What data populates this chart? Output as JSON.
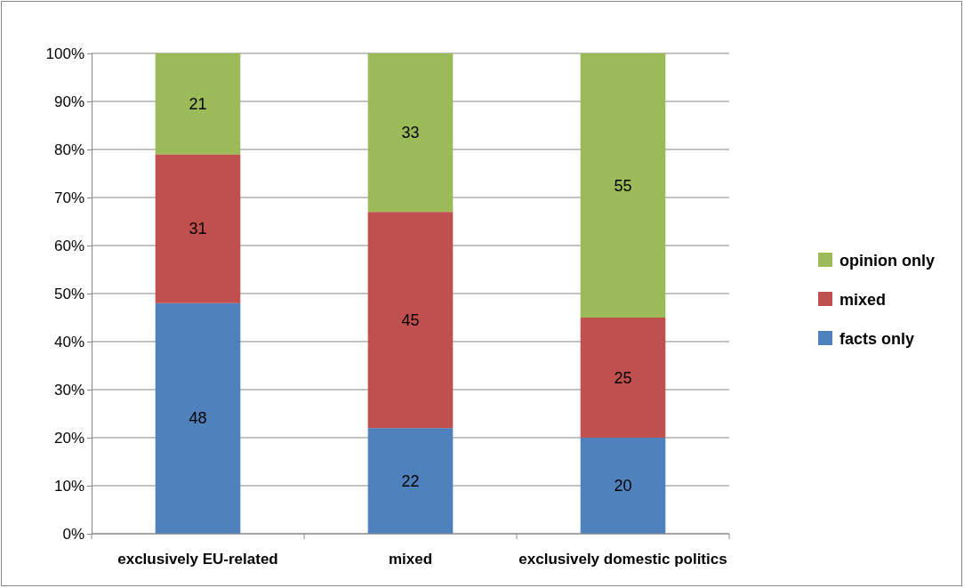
{
  "chart_data": {
    "type": "bar",
    "stacked": true,
    "categories": [
      "exclusively EU-related",
      "mixed",
      "exclusively domestic politics"
    ],
    "series": [
      {
        "name": "facts only",
        "color": "#4f81bd",
        "values": [
          48,
          22,
          20
        ]
      },
      {
        "name": "mixed",
        "color": "#c0504d",
        "values": [
          31,
          45,
          25
        ]
      },
      {
        "name": "opinion only",
        "color": "#9bbb59",
        "values": [
          21,
          33,
          55
        ]
      }
    ],
    "ylim": [
      0,
      100
    ],
    "yticks": [
      {
        "value": 0,
        "label": "0%"
      },
      {
        "value": 10,
        "label": "10%"
      },
      {
        "value": 20,
        "label": "20%"
      },
      {
        "value": 30,
        "label": "30%"
      },
      {
        "value": 40,
        "label": "40%"
      },
      {
        "value": 50,
        "label": "50%"
      },
      {
        "value": 60,
        "label": "60%"
      },
      {
        "value": 70,
        "label": "70%"
      },
      {
        "value": 80,
        "label": "80%"
      },
      {
        "value": 90,
        "label": "90%"
      },
      {
        "value": 100,
        "label": "100%"
      }
    ],
    "grid": "y",
    "legend": "right",
    "data_labels": true
  }
}
